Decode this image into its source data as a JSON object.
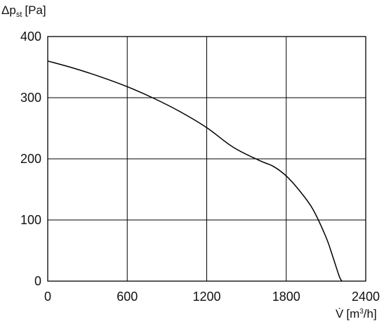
{
  "chart_data": {
    "type": "line",
    "title": "",
    "ylabel": {
      "symbol": "Δp",
      "sub": "st",
      "unit": "[Pa]"
    },
    "xlabel": {
      "symbol": "V̇",
      "unit_pre": "[m",
      "unit_sup": "3",
      "unit_post": "/h]"
    },
    "xlim": [
      0,
      2400
    ],
    "ylim": [
      0,
      400
    ],
    "x_ticks": [
      0,
      600,
      1200,
      1800,
      2400
    ],
    "y_ticks": [
      0,
      100,
      200,
      300,
      400
    ],
    "x_tick_labels": [
      "0",
      "600",
      "1200",
      "1800",
      "2400"
    ],
    "y_tick_labels": [
      "0",
      "100",
      "200",
      "300",
      "400"
    ],
    "grid": true,
    "series": [
      {
        "color": "#000000",
        "x": [
          0,
          200,
          400,
          600,
          800,
          1000,
          1200,
          1400,
          1600,
          1700,
          1800,
          1900,
          2000,
          2100,
          2150,
          2200,
          2220
        ],
        "y": [
          360,
          348,
          334,
          318,
          299,
          277,
          251,
          219,
          197,
          188,
          172,
          148,
          118,
          72,
          41,
          8,
          0
        ]
      }
    ]
  }
}
